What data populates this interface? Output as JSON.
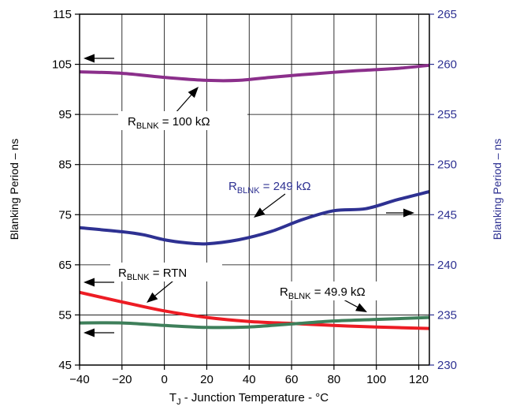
{
  "chart_data": {
    "type": "line",
    "title": "",
    "xlabel": {
      "base": "T",
      "sub": "J",
      "rest": " - Junction Temperature -  °C"
    },
    "ylabel_left": "Blanking Period – ns",
    "ylabel_right": "Blanking Period – ns",
    "xlim": [
      -40,
      125
    ],
    "ylim_left": [
      45,
      115
    ],
    "ylim_right": [
      230,
      265
    ],
    "x_ticks": [
      -40,
      -20,
      0,
      20,
      40,
      60,
      80,
      100,
      120
    ],
    "x_tick_labels": [
      "−40",
      "−20",
      "0",
      "20",
      "40",
      "60",
      "80",
      "100",
      "120"
    ],
    "y_left_ticks": [
      45,
      55,
      65,
      75,
      85,
      95,
      105,
      115
    ],
    "y_left_tick_labels": [
      "45",
      "55",
      "65",
      "75",
      "85",
      "95",
      "105",
      "115"
    ],
    "y_right_ticks": [
      230,
      235,
      240,
      245,
      250,
      255,
      260,
      265
    ],
    "y_right_tick_labels": [
      "230",
      "235",
      "240",
      "245",
      "250",
      "255",
      "260",
      "265"
    ],
    "grid": true,
    "series": [
      {
        "name": "100 kΩ",
        "axis": "left",
        "color": "#8b2f8b",
        "points": [
          [
            -40,
            103.5
          ],
          [
            -20,
            103.2
          ],
          [
            0,
            102.4
          ],
          [
            20,
            101.8
          ],
          [
            35,
            101.8
          ],
          [
            50,
            102.4
          ],
          [
            70,
            103.1
          ],
          [
            90,
            103.7
          ],
          [
            110,
            104.2
          ],
          [
            125,
            104.8
          ]
        ]
      },
      {
        "name": "249 kΩ",
        "axis": "right",
        "color": "#2e3192",
        "points": [
          [
            -40,
            243.7
          ],
          [
            -20,
            243.3
          ],
          [
            -10,
            243.0
          ],
          [
            0,
            242.5
          ],
          [
            10,
            242.2
          ],
          [
            20,
            242.1
          ],
          [
            35,
            242.5
          ],
          [
            50,
            243.3
          ],
          [
            65,
            244.5
          ],
          [
            80,
            245.4
          ],
          [
            95,
            245.6
          ],
          [
            110,
            246.5
          ],
          [
            125,
            247.3
          ]
        ]
      },
      {
        "name": "RTN",
        "axis": "left",
        "color": "#ed1c24",
        "points": [
          [
            -40,
            59.5
          ],
          [
            -20,
            57.6
          ],
          [
            0,
            55.8
          ],
          [
            20,
            54.5
          ],
          [
            40,
            53.7
          ],
          [
            60,
            53.3
          ],
          [
            80,
            52.9
          ],
          [
            100,
            52.6
          ],
          [
            125,
            52.3
          ]
        ]
      },
      {
        "name": "49.9 kΩ",
        "axis": "left",
        "color": "#3e7f5a",
        "points": [
          [
            -40,
            53.4
          ],
          [
            -20,
            53.4
          ],
          [
            0,
            52.9
          ],
          [
            20,
            52.5
          ],
          [
            40,
            52.6
          ],
          [
            60,
            53.2
          ],
          [
            80,
            53.8
          ],
          [
            100,
            54.1
          ],
          [
            125,
            54.5
          ]
        ]
      }
    ],
    "annotations": [
      {
        "id": "r100",
        "prefix": "R",
        "sub": "BLNK",
        "rest": " = 100 kΩ",
        "color": "#000000"
      },
      {
        "id": "r249",
        "prefix": "R",
        "sub": "BLNK",
        "rest": " = 249 kΩ",
        "color": "#2e3192"
      },
      {
        "id": "rrtn",
        "prefix": "R",
        "sub": "BLNK",
        "rest": " = RTN",
        "color": "#000000"
      },
      {
        "id": "r499",
        "prefix": "R",
        "sub": "BLNK",
        "rest": " = 49.9 kΩ",
        "color": "#000000"
      }
    ]
  }
}
